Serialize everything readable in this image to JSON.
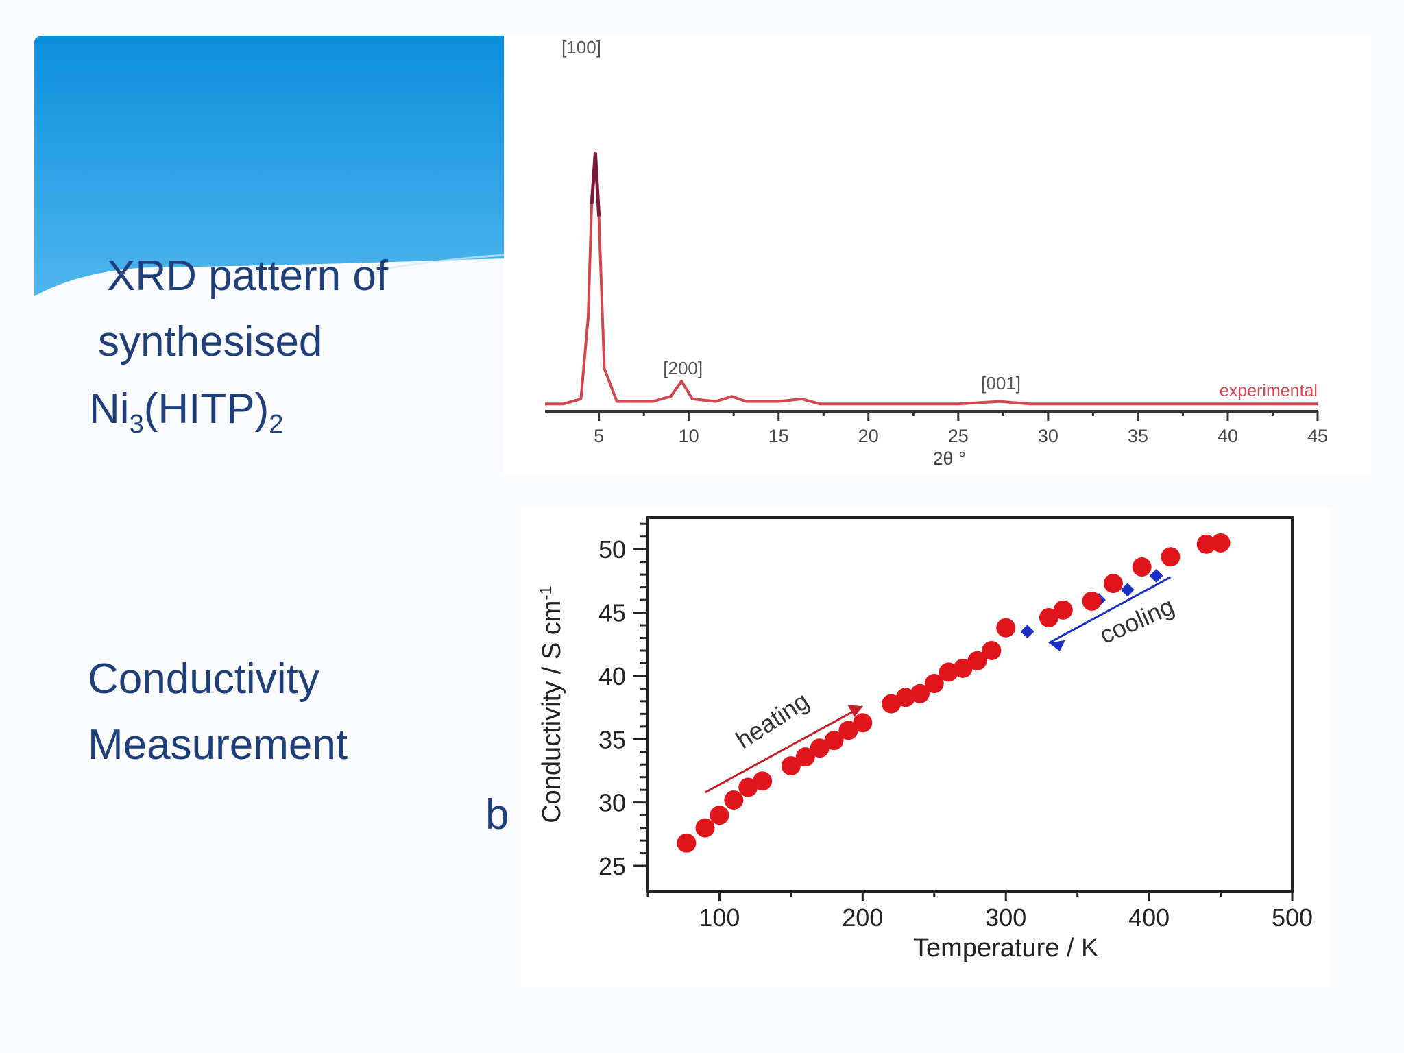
{
  "slide": {
    "colors": {
      "banner_top": "#0a8fdc",
      "banner_bottom": "#5cbdf0",
      "caption_text": "#1f3f7a"
    },
    "captions": {
      "xrd_line1": "XRD pattern of",
      "xrd_line2": "synthesised",
      "xrd_formula_ni": "Ni",
      "xrd_formula_sub1": "3",
      "xrd_formula_mid": "(HITP)",
      "xrd_formula_sub2": "2",
      "cond_line1": "Conductivity",
      "cond_line2": "Measurement",
      "stray_letter": "b"
    }
  },
  "chart_data": [
    {
      "type": "line",
      "title": "",
      "xlabel": "2θ  °",
      "ylabel": "",
      "xlim": [
        2,
        45
      ],
      "xticks": [
        "5",
        "10",
        "15",
        "20",
        "25",
        "30",
        "35",
        "40",
        "45"
      ],
      "x": [
        2.0,
        3.0,
        4.0,
        4.4,
        4.6,
        4.8,
        5.0,
        5.3,
        6.0,
        8.0,
        9.0,
        9.6,
        10.2,
        11.5,
        12.4,
        13.2,
        15.0,
        16.3,
        17.3,
        20.0,
        25.0,
        27.3,
        29.0,
        35.0,
        45.0
      ],
      "series": [
        {
          "name": "experimental",
          "color": "#d2474f",
          "values": [
            0.01,
            0.01,
            0.03,
            0.35,
            0.8,
            1.0,
            0.75,
            0.15,
            0.02,
            0.02,
            0.04,
            0.1,
            0.03,
            0.02,
            0.04,
            0.02,
            0.02,
            0.03,
            0.01,
            0.01,
            0.01,
            0.02,
            0.01,
            0.01,
            0.01
          ]
        }
      ],
      "peak_labels": [
        {
          "label": "[100]",
          "x": 4.8
        },
        {
          "label": "[200]",
          "x": 9.6
        },
        {
          "label": "[001]",
          "x": 27.3
        }
      ],
      "legend": "experimental"
    },
    {
      "type": "scatter",
      "title": "",
      "xlabel": "Temperature / K",
      "ylabel": "Conductivity / S cm",
      "ylabel_superscript": "-1",
      "xlim": [
        50,
        500
      ],
      "ylim": [
        23,
        52.5
      ],
      "xticks": [
        "100",
        "200",
        "300",
        "400",
        "500"
      ],
      "yticks": [
        "25",
        "30",
        "35",
        "40",
        "45",
        "50"
      ],
      "series": [
        {
          "name": "heating",
          "color": "#e0151b",
          "points": [
            [
              77,
              26.8
            ],
            [
              90,
              28.0
            ],
            [
              100,
              29.0
            ],
            [
              110,
              30.2
            ],
            [
              120,
              31.2
            ],
            [
              130,
              31.7
            ],
            [
              150,
              32.9
            ],
            [
              160,
              33.6
            ],
            [
              170,
              34.3
            ],
            [
              180,
              34.9
            ],
            [
              190,
              35.7
            ],
            [
              200,
              36.3
            ],
            [
              220,
              37.8
            ],
            [
              230,
              38.3
            ],
            [
              240,
              38.6
            ],
            [
              250,
              39.4
            ],
            [
              260,
              40.3
            ],
            [
              270,
              40.6
            ],
            [
              280,
              41.2
            ],
            [
              290,
              42.0
            ],
            [
              300,
              43.8
            ],
            [
              330,
              44.6
            ],
            [
              340,
              45.2
            ],
            [
              360,
              45.9
            ],
            [
              375,
              47.3
            ],
            [
              395,
              48.6
            ],
            [
              415,
              49.4
            ],
            [
              440,
              50.4
            ],
            [
              450,
              50.5
            ]
          ]
        },
        {
          "name": "cooling",
          "color": "#1a2fc4",
          "points": [
            [
              315,
              43.5
            ],
            [
              365,
              46.0
            ],
            [
              385,
              46.8
            ],
            [
              405,
              47.9
            ]
          ]
        }
      ],
      "annotations": [
        "heating",
        "cooling"
      ],
      "grid": false
    }
  ]
}
